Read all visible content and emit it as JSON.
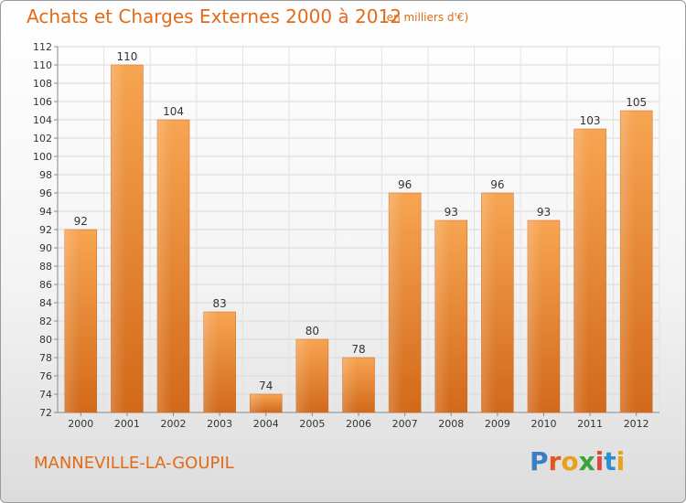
{
  "chart_data": {
    "type": "bar",
    "title": "Achats et Charges Externes 2000 à 2012",
    "unit_note": "(en milliers d'€)",
    "categories": [
      "2000",
      "2001",
      "2002",
      "2003",
      "2004",
      "2005",
      "2006",
      "2007",
      "2008",
      "2009",
      "2010",
      "2011",
      "2012"
    ],
    "values": [
      92,
      110,
      104,
      83,
      74,
      80,
      78,
      96,
      93,
      96,
      93,
      103,
      105
    ],
    "ylim": [
      72,
      112
    ],
    "yticks": [
      72,
      74,
      76,
      78,
      80,
      82,
      84,
      86,
      88,
      90,
      92,
      94,
      96,
      98,
      100,
      102,
      104,
      106,
      108,
      110,
      112
    ],
    "grid": true,
    "bar_color": "#f08a2c"
  },
  "commune": "MANNEVILLE-LA-GOUPIL",
  "brand": {
    "letters": [
      "P",
      "r",
      "o",
      "x",
      "i",
      "t",
      "i"
    ],
    "colors": [
      "#3a7fc4",
      "#e0561e",
      "#e8a21a",
      "#3aa33a",
      "#e04a3a",
      "#2e8fd0",
      "#e8a21a"
    ]
  }
}
